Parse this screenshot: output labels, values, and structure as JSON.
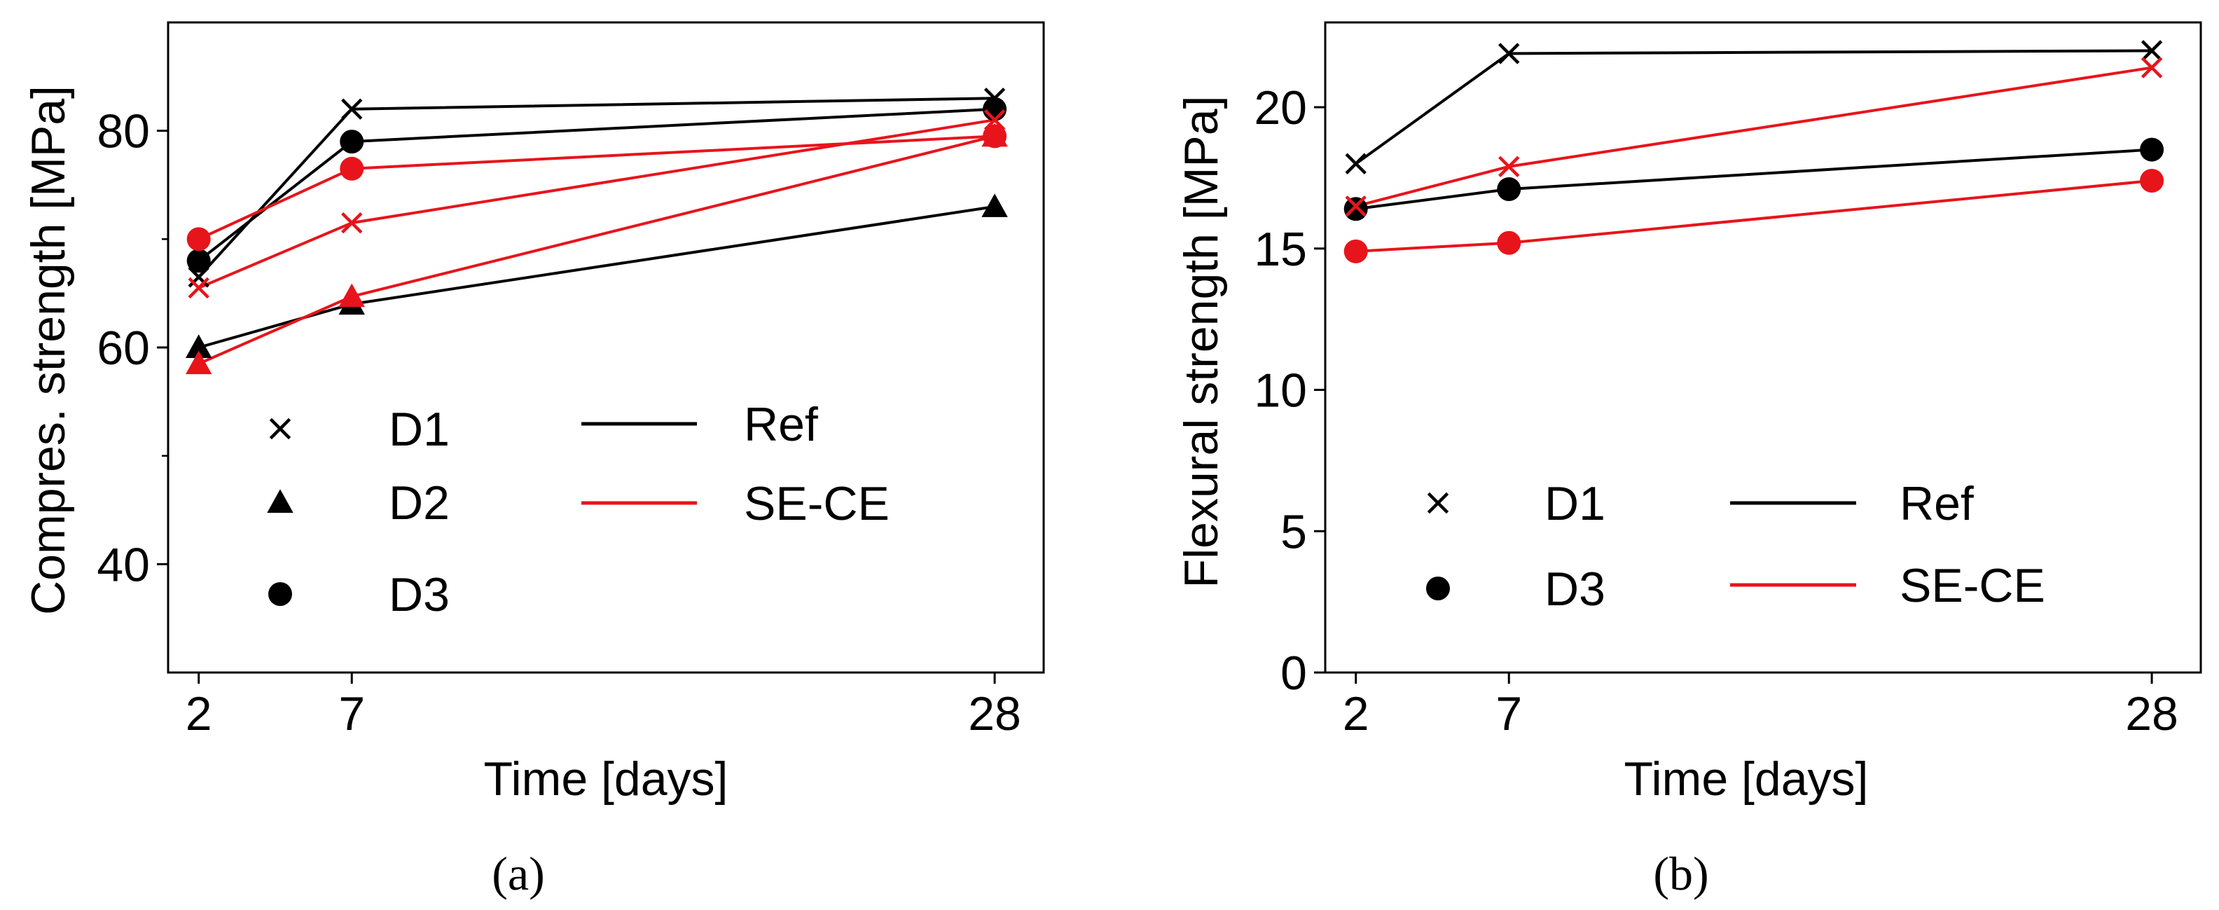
{
  "chart_data": [
    {
      "type": "line",
      "panel_label": "(a)",
      "xlabel": "Time [days]",
      "ylabel": "Compres. strength [MPa]",
      "x": [
        2,
        7,
        28
      ],
      "x_tick_labels": [
        "2",
        "7",
        "28"
      ],
      "xlim": [
        0,
        30
      ],
      "ylim": [
        30,
        90
      ],
      "y_ticks": [
        40,
        60,
        80
      ],
      "y_tick_labels": [
        "40",
        "60",
        "80"
      ],
      "grid": false,
      "legend_markers": [
        {
          "label": "D1",
          "marker": "x"
        },
        {
          "label": "D2",
          "marker": "triangle"
        },
        {
          "label": "D3",
          "marker": "circle"
        }
      ],
      "legend_lines": [
        {
          "label": "Ref",
          "color": "#000000"
        },
        {
          "label": "SE-CE",
          "color": "#e8141b"
        }
      ],
      "series": [
        {
          "group": "Ref",
          "marker": "x",
          "color": "#000000",
          "values": [
            66.5,
            82.0,
            83.0
          ]
        },
        {
          "group": "Ref",
          "marker": "triangle",
          "color": "#000000",
          "values": [
            60.0,
            64.0,
            73.0
          ]
        },
        {
          "group": "Ref",
          "marker": "circle",
          "color": "#000000",
          "values": [
            68.0,
            79.0,
            82.0
          ]
        },
        {
          "group": "SE-CE",
          "marker": "x",
          "color": "#e8141b",
          "values": [
            65.5,
            71.5,
            81.0
          ]
        },
        {
          "group": "SE-CE",
          "marker": "triangle",
          "color": "#e8141b",
          "values": [
            58.5,
            64.7,
            79.5
          ]
        },
        {
          "group": "SE-CE",
          "marker": "circle",
          "color": "#e8141b",
          "values": [
            70.0,
            76.5,
            79.5
          ]
        }
      ]
    },
    {
      "type": "line",
      "panel_label": "(b)",
      "xlabel": "Time [days]",
      "ylabel": "Flexural strength [MPa]",
      "x": [
        2,
        7,
        28
      ],
      "x_tick_labels": [
        "2",
        "7",
        "28"
      ],
      "xlim": [
        0,
        30
      ],
      "ylim": [
        0,
        23
      ],
      "y_ticks": [
        0,
        5,
        10,
        15,
        20
      ],
      "y_tick_labels": [
        "0",
        "5",
        "10",
        "15",
        "20"
      ],
      "grid": false,
      "legend_markers": [
        {
          "label": "D1",
          "marker": "x"
        },
        {
          "label": "D3",
          "marker": "circle"
        }
      ],
      "legend_lines": [
        {
          "label": "Ref",
          "color": "#000000"
        },
        {
          "label": "SE-CE",
          "color": "#e8141b"
        }
      ],
      "series": [
        {
          "group": "Ref",
          "marker": "x",
          "color": "#000000",
          "values": [
            18.0,
            21.9,
            22.0
          ]
        },
        {
          "group": "Ref",
          "marker": "circle",
          "color": "#000000",
          "values": [
            16.4,
            17.1,
            18.5
          ]
        },
        {
          "group": "SE-CE",
          "marker": "x",
          "color": "#e8141b",
          "values": [
            16.5,
            17.9,
            21.4
          ]
        },
        {
          "group": "SE-CE",
          "marker": "circle",
          "color": "#e8141b",
          "values": [
            14.9,
            15.2,
            17.4
          ]
        }
      ]
    }
  ]
}
